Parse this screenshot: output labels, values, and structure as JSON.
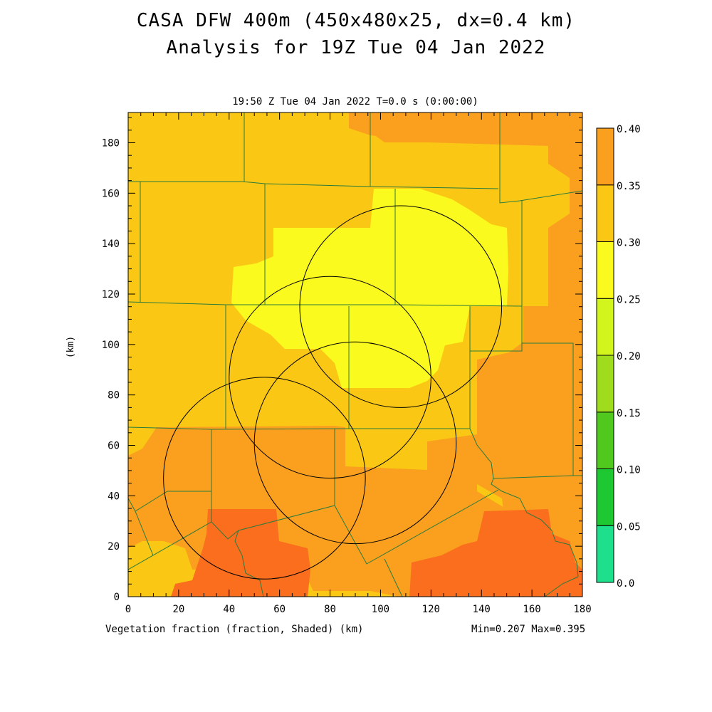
{
  "title_line1": "CASA DFW 400m (450x480x25, dx=0.4 km)",
  "title_line2": "Analysis for 19Z Tue 04 Jan 2022",
  "subtitle": "19:50 Z Tue 04 Jan 2022   T=0.0 s (0:00:00)",
  "x_label": "Vegetation fraction (fraction, Shaded)  (km)",
  "y_label": "(km)",
  "min_max": "Min=0.207 Max=0.395",
  "chart_data": {
    "type": "heatmap",
    "variable": "Vegetation fraction",
    "units": "fraction",
    "x_range_km": [
      0,
      180
    ],
    "y_range_km": [
      0,
      192
    ],
    "x_ticks": [
      "0",
      "20",
      "40",
      "60",
      "80",
      "100",
      "120",
      "140",
      "160",
      "180"
    ],
    "y_ticks": [
      "0",
      "20",
      "40",
      "60",
      "80",
      "100",
      "120",
      "140",
      "160",
      "180"
    ],
    "min": 0.207,
    "max": 0.395,
    "colorbar": {
      "levels": [
        "0.0",
        "0.05",
        "0.10",
        "0.15",
        "0.20",
        "0.25",
        "0.30",
        "0.35",
        "0.40"
      ],
      "colors": [
        "#1ee08c",
        "#1ec832",
        "#50c81e",
        "#a0dc1e",
        "#d2f51e",
        "#fafa1e",
        "#fac814",
        "#faa01e",
        "#fa6e1e"
      ]
    },
    "radar_range_rings": [
      {
        "center_km": [
          108,
          115
        ],
        "radius_km": 40
      },
      {
        "center_km": [
          80,
          87
        ],
        "radius_km": 40
      },
      {
        "center_km": [
          90,
          61
        ],
        "radius_km": 40
      },
      {
        "center_km": [
          54,
          47
        ],
        "radius_km": 40
      }
    ]
  }
}
